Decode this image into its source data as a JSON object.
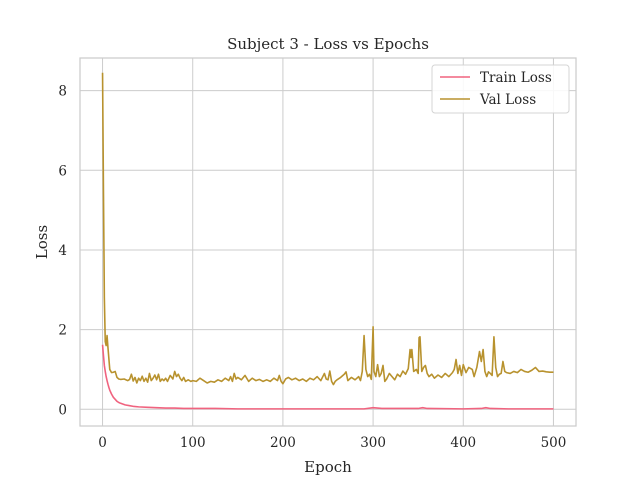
{
  "chart_data": {
    "type": "line",
    "title": "Subject 3 - Loss vs Epochs",
    "xlabel": "Epoch",
    "ylabel": "Loss",
    "xlim": [
      -25,
      525
    ],
    "ylim": [
      -0.42,
      8.82
    ],
    "xticks": [
      0,
      100,
      200,
      300,
      400,
      500
    ],
    "yticks": [
      0,
      2,
      4,
      6,
      8
    ],
    "grid": true,
    "legend_position": "top-right",
    "series": [
      {
        "name": "Train Loss",
        "color": "#f0637f",
        "points": [
          [
            0,
            1.62
          ],
          [
            1,
            1.35
          ],
          [
            2,
            1.1
          ],
          [
            3,
            0.95
          ],
          [
            4,
            0.82
          ],
          [
            5,
            0.72
          ],
          [
            6,
            0.63
          ],
          [
            7,
            0.55
          ],
          [
            8,
            0.48
          ],
          [
            10,
            0.38
          ],
          [
            12,
            0.3
          ],
          [
            14,
            0.25
          ],
          [
            16,
            0.2
          ],
          [
            18,
            0.17
          ],
          [
            20,
            0.15
          ],
          [
            25,
            0.11
          ],
          [
            30,
            0.09
          ],
          [
            35,
            0.07
          ],
          [
            40,
            0.06
          ],
          [
            50,
            0.05
          ],
          [
            60,
            0.04
          ],
          [
            70,
            0.03
          ],
          [
            80,
            0.03
          ],
          [
            90,
            0.02
          ],
          [
            100,
            0.02
          ],
          [
            125,
            0.02
          ],
          [
            150,
            0.01
          ],
          [
            200,
            0.01
          ],
          [
            250,
            0.01
          ],
          [
            290,
            0.01
          ],
          [
            300,
            0.04
          ],
          [
            310,
            0.02
          ],
          [
            350,
            0.02
          ],
          [
            355,
            0.04
          ],
          [
            360,
            0.02
          ],
          [
            400,
            0.01
          ],
          [
            420,
            0.02
          ],
          [
            425,
            0.04
          ],
          [
            430,
            0.02
          ],
          [
            450,
            0.01
          ],
          [
            500,
            0.01
          ]
        ]
      },
      {
        "name": "Val Loss",
        "color": "#b8922e",
        "points": [
          [
            0,
            8.45
          ],
          [
            1,
            5.5
          ],
          [
            2,
            2.8
          ],
          [
            3,
            1.7
          ],
          [
            4,
            1.6
          ],
          [
            5,
            1.85
          ],
          [
            6,
            1.55
          ],
          [
            8,
            1.0
          ],
          [
            10,
            0.92
          ],
          [
            12,
            0.93
          ],
          [
            14,
            0.95
          ],
          [
            16,
            0.8
          ],
          [
            18,
            0.76
          ],
          [
            20,
            0.75
          ],
          [
            24,
            0.76
          ],
          [
            28,
            0.72
          ],
          [
            30,
            0.75
          ],
          [
            32,
            0.88
          ],
          [
            34,
            0.71
          ],
          [
            36,
            0.8
          ],
          [
            38,
            0.66
          ],
          [
            40,
            0.78
          ],
          [
            42,
            0.72
          ],
          [
            44,
            0.83
          ],
          [
            46,
            0.7
          ],
          [
            48,
            0.78
          ],
          [
            50,
            0.68
          ],
          [
            52,
            0.9
          ],
          [
            54,
            0.72
          ],
          [
            56,
            0.78
          ],
          [
            58,
            0.86
          ],
          [
            60,
            0.74
          ],
          [
            62,
            0.88
          ],
          [
            64,
            0.7
          ],
          [
            66,
            0.76
          ],
          [
            68,
            0.72
          ],
          [
            70,
            0.78
          ],
          [
            72,
            0.7
          ],
          [
            75,
            0.85
          ],
          [
            78,
            0.76
          ],
          [
            80,
            0.95
          ],
          [
            82,
            0.82
          ],
          [
            84,
            0.88
          ],
          [
            86,
            0.78
          ],
          [
            88,
            0.72
          ],
          [
            90,
            0.8
          ],
          [
            92,
            0.7
          ],
          [
            95,
            0.74
          ],
          [
            98,
            0.7
          ],
          [
            100,
            0.72
          ],
          [
            104,
            0.7
          ],
          [
            108,
            0.78
          ],
          [
            112,
            0.72
          ],
          [
            116,
            0.66
          ],
          [
            120,
            0.7
          ],
          [
            124,
            0.68
          ],
          [
            128,
            0.74
          ],
          [
            132,
            0.7
          ],
          [
            136,
            0.78
          ],
          [
            140,
            0.72
          ],
          [
            142,
            0.82
          ],
          [
            144,
            0.7
          ],
          [
            146,
            0.9
          ],
          [
            148,
            0.76
          ],
          [
            150,
            0.8
          ],
          [
            154,
            0.74
          ],
          [
            158,
            0.85
          ],
          [
            162,
            0.7
          ],
          [
            166,
            0.78
          ],
          [
            170,
            0.72
          ],
          [
            174,
            0.75
          ],
          [
            178,
            0.7
          ],
          [
            182,
            0.74
          ],
          [
            186,
            0.7
          ],
          [
            190,
            0.78
          ],
          [
            194,
            0.72
          ],
          [
            196,
            0.85
          ],
          [
            198,
            0.7
          ],
          [
            200,
            0.64
          ],
          [
            203,
            0.76
          ],
          [
            206,
            0.8
          ],
          [
            210,
            0.74
          ],
          [
            214,
            0.78
          ],
          [
            218,
            0.72
          ],
          [
            222,
            0.76
          ],
          [
            226,
            0.7
          ],
          [
            230,
            0.78
          ],
          [
            234,
            0.74
          ],
          [
            238,
            0.82
          ],
          [
            242,
            0.72
          ],
          [
            246,
            0.9
          ],
          [
            248,
            0.76
          ],
          [
            250,
            0.74
          ],
          [
            252,
            0.96
          ],
          [
            254,
            0.7
          ],
          [
            256,
            0.62
          ],
          [
            258,
            0.7
          ],
          [
            260,
            0.74
          ],
          [
            264,
            0.8
          ],
          [
            268,
            0.88
          ],
          [
            270,
            0.94
          ],
          [
            272,
            0.72
          ],
          [
            276,
            0.8
          ],
          [
            280,
            0.74
          ],
          [
            284,
            0.82
          ],
          [
            286,
            0.72
          ],
          [
            288,
            0.95
          ],
          [
            290,
            1.85
          ],
          [
            292,
            1.0
          ],
          [
            294,
            0.82
          ],
          [
            296,
            0.88
          ],
          [
            298,
            0.75
          ],
          [
            300,
            2.07
          ],
          [
            301,
            0.95
          ],
          [
            303,
            0.82
          ],
          [
            305,
            1.12
          ],
          [
            307,
            0.82
          ],
          [
            309,
            0.9
          ],
          [
            311,
            1.1
          ],
          [
            313,
            0.7
          ],
          [
            315,
            0.76
          ],
          [
            318,
            0.9
          ],
          [
            321,
            0.82
          ],
          [
            324,
            0.74
          ],
          [
            327,
            0.88
          ],
          [
            330,
            0.82
          ],
          [
            333,
            0.96
          ],
          [
            336,
            0.88
          ],
          [
            339,
            1.02
          ],
          [
            341,
            1.5
          ],
          [
            342,
            1.3
          ],
          [
            343,
            1.5
          ],
          [
            345,
            0.95
          ],
          [
            348,
            1.0
          ],
          [
            350,
            0.9
          ],
          [
            351,
            1.8
          ],
          [
            352,
            1.82
          ],
          [
            354,
            0.95
          ],
          [
            356,
            1.05
          ],
          [
            358,
            1.1
          ],
          [
            360,
            0.9
          ],
          [
            362,
            0.82
          ],
          [
            365,
            0.88
          ],
          [
            368,
            0.78
          ],
          [
            372,
            0.86
          ],
          [
            376,
            0.8
          ],
          [
            380,
            0.9
          ],
          [
            384,
            0.82
          ],
          [
            388,
            0.92
          ],
          [
            390,
            1.0
          ],
          [
            392,
            1.25
          ],
          [
            394,
            0.9
          ],
          [
            396,
            1.1
          ],
          [
            398,
            0.85
          ],
          [
            400,
            1.12
          ],
          [
            403,
            0.92
          ],
          [
            406,
            1.05
          ],
          [
            410,
            1.0
          ],
          [
            412,
            0.82
          ],
          [
            415,
            1.05
          ],
          [
            418,
            1.45
          ],
          [
            420,
            1.2
          ],
          [
            422,
            1.5
          ],
          [
            424,
            0.95
          ],
          [
            426,
            0.82
          ],
          [
            428,
            0.94
          ],
          [
            430,
            0.9
          ],
          [
            432,
            0.85
          ],
          [
            434,
            1.82
          ],
          [
            436,
            1.05
          ],
          [
            438,
            0.82
          ],
          [
            440,
            0.88
          ],
          [
            442,
            0.9
          ],
          [
            444,
            1.2
          ],
          [
            446,
            0.95
          ],
          [
            448,
            0.92
          ],
          [
            452,
            0.9
          ],
          [
            456,
            0.95
          ],
          [
            460,
            0.92
          ],
          [
            464,
            1.0
          ],
          [
            468,
            0.95
          ],
          [
            472,
            0.93
          ],
          [
            476,
            0.98
          ],
          [
            480,
            1.05
          ],
          [
            484,
            0.95
          ],
          [
            488,
            0.96
          ],
          [
            492,
            0.94
          ],
          [
            496,
            0.93
          ],
          [
            500,
            0.93
          ]
        ]
      }
    ]
  }
}
